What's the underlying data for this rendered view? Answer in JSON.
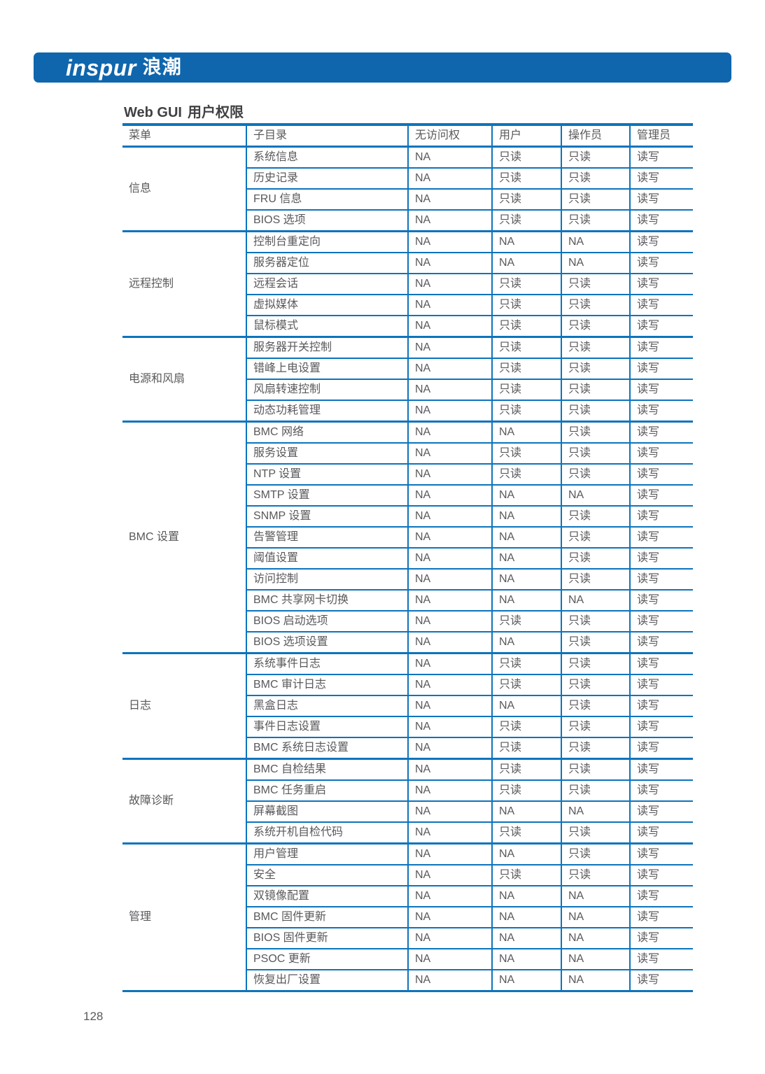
{
  "logo": {
    "en": "inspur",
    "cn": "浪潮"
  },
  "page": {
    "title_en": "Web GUI",
    "title_cn": "用户权限",
    "page_number": "128"
  },
  "colors": {
    "brand_bar": "#0f66ad",
    "table_border": "#0d74bc",
    "title_text": "#414042",
    "cell_text": "#59595c"
  },
  "table": {
    "columns": [
      "菜单",
      "子目录",
      "无访问权",
      "用户",
      "操作员",
      "管理员"
    ],
    "groups": [
      {
        "menu": "信息",
        "rows": [
          {
            "sub": "系统信息",
            "values": [
              "NA",
              "只读",
              "只读",
              "读写"
            ]
          },
          {
            "sub": "历史记录",
            "values": [
              "NA",
              "只读",
              "只读",
              "读写"
            ]
          },
          {
            "sub": "FRU 信息",
            "values": [
              "NA",
              "只读",
              "只读",
              "读写"
            ]
          },
          {
            "sub": "BIOS 选项",
            "values": [
              "NA",
              "只读",
              "只读",
              "读写"
            ]
          }
        ]
      },
      {
        "menu": "远程控制",
        "rows": [
          {
            "sub": "控制台重定向",
            "values": [
              "NA",
              "NA",
              "NA",
              "读写"
            ]
          },
          {
            "sub": "服务器定位",
            "values": [
              "NA",
              "NA",
              "NA",
              "读写"
            ]
          },
          {
            "sub": "远程会话",
            "values": [
              "NA",
              "只读",
              "只读",
              "读写"
            ]
          },
          {
            "sub": "虚拟媒体",
            "values": [
              "NA",
              "只读",
              "只读",
              "读写"
            ]
          },
          {
            "sub": "鼠标模式",
            "values": [
              "NA",
              "只读",
              "只读",
              "读写"
            ]
          }
        ]
      },
      {
        "menu": "电源和风扇",
        "rows": [
          {
            "sub": "服务器开关控制",
            "values": [
              "NA",
              "只读",
              "只读",
              "读写"
            ]
          },
          {
            "sub": "错峰上电设置",
            "values": [
              "NA",
              "只读",
              "只读",
              "读写"
            ]
          },
          {
            "sub": "风扇转速控制",
            "values": [
              "NA",
              "只读",
              "只读",
              "读写"
            ]
          },
          {
            "sub": "动态功耗管理",
            "values": [
              "NA",
              "只读",
              "只读",
              "读写"
            ]
          }
        ]
      },
      {
        "menu": "BMC 设置",
        "rows": [
          {
            "sub": "BMC 网络",
            "values": [
              "NA",
              "NA",
              "只读",
              "读写"
            ]
          },
          {
            "sub": "服务设置",
            "values": [
              "NA",
              "只读",
              "只读",
              "读写"
            ]
          },
          {
            "sub": "NTP 设置",
            "values": [
              "NA",
              "只读",
              "只读",
              "读写"
            ]
          },
          {
            "sub": "SMTP 设置",
            "values": [
              "NA",
              "NA",
              "NA",
              "读写"
            ]
          },
          {
            "sub": "SNMP 设置",
            "values": [
              "NA",
              "NA",
              "只读",
              "读写"
            ]
          },
          {
            "sub": "告警管理",
            "values": [
              "NA",
              "NA",
              "只读",
              "读写"
            ]
          },
          {
            "sub": "阈值设置",
            "values": [
              "NA",
              "NA",
              "只读",
              "读写"
            ]
          },
          {
            "sub": "访问控制",
            "values": [
              "NA",
              "NA",
              "只读",
              "读写"
            ]
          },
          {
            "sub": "BMC 共享网卡切换",
            "values": [
              "NA",
              "NA",
              "NA",
              "读写"
            ]
          },
          {
            "sub": "BIOS 启动选项",
            "values": [
              "NA",
              "只读",
              "只读",
              "读写"
            ]
          },
          {
            "sub": "BIOS 选项设置",
            "values": [
              "NA",
              "NA",
              "只读",
              "读写"
            ]
          }
        ]
      },
      {
        "menu": "日志",
        "rows": [
          {
            "sub": "系统事件日志",
            "values": [
              "NA",
              "只读",
              "只读",
              "读写"
            ]
          },
          {
            "sub": "BMC 审计日志",
            "values": [
              "NA",
              "只读",
              "只读",
              "读写"
            ]
          },
          {
            "sub": "黑盒日志",
            "values": [
              "NA",
              "NA",
              "只读",
              "读写"
            ]
          },
          {
            "sub": "事件日志设置",
            "values": [
              "NA",
              "只读",
              "只读",
              "读写"
            ]
          },
          {
            "sub": "BMC 系统日志设置",
            "values": [
              "NA",
              "只读",
              "只读",
              "读写"
            ]
          }
        ]
      },
      {
        "menu": "故障诊断",
        "rows": [
          {
            "sub": "BMC 自检结果",
            "values": [
              "NA",
              "只读",
              "只读",
              "读写"
            ]
          },
          {
            "sub": "BMC 任务重启",
            "values": [
              "NA",
              "只读",
              "只读",
              "读写"
            ]
          },
          {
            "sub": "屏幕截图",
            "values": [
              "NA",
              "NA",
              "NA",
              "读写"
            ]
          },
          {
            "sub": "系统开机自检代码",
            "values": [
              "NA",
              "只读",
              "只读",
              "读写"
            ]
          }
        ]
      },
      {
        "menu": "管理",
        "rows": [
          {
            "sub": "用户管理",
            "values": [
              "NA",
              "NA",
              "只读",
              "读写"
            ]
          },
          {
            "sub": "安全",
            "values": [
              "NA",
              "只读",
              "只读",
              "读写"
            ]
          },
          {
            "sub": "双镜像配置",
            "values": [
              "NA",
              "NA",
              "NA",
              "读写"
            ]
          },
          {
            "sub": "BMC 固件更新",
            "values": [
              "NA",
              "NA",
              "NA",
              "读写"
            ]
          },
          {
            "sub": "BIOS 固件更新",
            "values": [
              "NA",
              "NA",
              "NA",
              "读写"
            ]
          },
          {
            "sub": "PSOC 更新",
            "values": [
              "NA",
              "NA",
              "NA",
              "读写"
            ]
          },
          {
            "sub": "恢复出厂设置",
            "values": [
              "NA",
              "NA",
              "NA",
              "读写"
            ]
          }
        ]
      }
    ]
  }
}
